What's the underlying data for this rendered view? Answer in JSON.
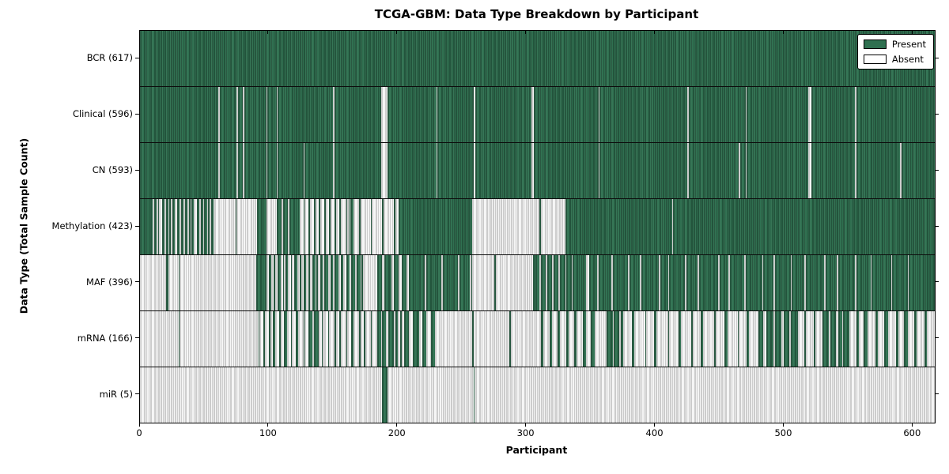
{
  "chart_data": {
    "type": "heatmap",
    "title": "TCGA-GBM: Data Type Breakdown by Participant",
    "xlabel": "Participant",
    "ylabel": "Data Type (Total Sample Count)",
    "x_ticks": [
      0,
      100,
      200,
      300,
      400,
      500,
      600
    ],
    "x_range": [
      0,
      617
    ],
    "n_participants": 617,
    "grid": false,
    "legend_position": "upper right",
    "colors": {
      "present": "#2f7050",
      "absent": "#f3f3f3",
      "edge": "#000000"
    },
    "legend": [
      {
        "label": "Present",
        "color": "#2f7050"
      },
      {
        "label": "Absent",
        "color": "#ffffff"
      }
    ],
    "rows": [
      {
        "label": "BCR (617)",
        "data_type": "BCR",
        "present_count": 617,
        "absent_count": 0,
        "runs": [
          617
        ]
      },
      {
        "label": "Clinical (596)",
        "data_type": "Clinical",
        "present_count": 596,
        "absent_count": 21,
        "runs": [
          61,
          -1,
          13,
          -1,
          4,
          -1,
          17,
          -1,
          7,
          -1,
          43,
          -1,
          36,
          -5,
          38,
          -1,
          28,
          -1,
          44,
          -2,
          50,
          -1,
          68,
          -1,
          44,
          -1,
          48,
          -2,
          34,
          -1,
          61
        ]
      },
      {
        "label": "CN (593)",
        "data_type": "CN",
        "present_count": 593,
        "absent_count": 24,
        "runs": [
          61,
          -1,
          13,
          -1,
          4,
          -1,
          17,
          -1,
          7,
          -1,
          20,
          -1,
          22,
          -1,
          36,
          -5,
          38,
          -1,
          28,
          -1,
          44,
          -2,
          50,
          -1,
          68,
          -1,
          39,
          -1,
          4,
          -1,
          48,
          -2,
          34,
          -1,
          34,
          -1,
          26
        ]
      },
      {
        "label": "Methylation (423)",
        "data_type": "Methylation",
        "present_count": 423,
        "absent_count": 194,
        "runs": [
          10,
          -1,
          2,
          -1,
          1,
          -2,
          2,
          -1,
          2,
          -1,
          1,
          -1,
          2,
          -2,
          2,
          -1,
          2,
          -1,
          2,
          -1,
          1,
          -1,
          2,
          -2,
          2,
          -1,
          2,
          -1,
          2,
          -1,
          1,
          -1,
          2,
          -1,
          -16,
          1,
          -16,
          7,
          -8,
          4,
          -1,
          4,
          -1,
          8,
          -3,
          1,
          -3,
          1,
          -3,
          1,
          -3,
          1,
          -3,
          1,
          -3,
          1,
          -3,
          1,
          -3,
          1,
          -4,
          1,
          -1,
          1,
          3,
          -4,
          1,
          -8,
          1,
          -8,
          1,
          -8,
          1,
          -3,
          57,
          -52,
          1,
          -19,
          83,
          -1,
          203
        ]
      },
      {
        "label": "MAF (396)",
        "data_type": "MAF",
        "present_count": 396,
        "absent_count": 221,
        "runs": [
          -20,
          2,
          -8,
          1,
          -59,
          7,
          1,
          -2,
          2,
          -2,
          1,
          -2,
          2,
          -2,
          1,
          -1,
          2,
          -2,
          1,
          -2,
          2,
          -2,
          1,
          -2,
          2,
          -2,
          1,
          -2,
          2,
          -1,
          1,
          -2,
          2,
          -1,
          3,
          -2,
          2,
          -1,
          3,
          -2,
          2,
          -2,
          3,
          -1,
          3,
          -1,
          3,
          -1,
          1,
          -1,
          -10,
          4,
          -2,
          5,
          -2,
          4,
          -2,
          4,
          -2,
          12,
          -1,
          12,
          -1,
          12,
          -1,
          8,
          -1,
          1,
          -17,
          1,
          -29,
          2,
          3,
          -1,
          4,
          -1,
          4,
          -1,
          4,
          -1,
          4,
          -1,
          4,
          -1,
          10,
          -3,
          6,
          -1,
          10,
          -1,
          12,
          -1,
          8,
          -1,
          14,
          -1,
          6,
          -1,
          12,
          -1,
          9,
          -1,
          15,
          -1,
          7,
          -1,
          11,
          -1,
          13,
          -1,
          8,
          -1,
          12,
          -1,
          10,
          -1,
          14,
          -1,
          9,
          -1,
          13,
          -1,
          11,
          -1,
          15,
          -1,
          12,
          -1,
          20
        ]
      },
      {
        "label": "mRNA (166)",
        "data_type": "mRNA",
        "present_count": 166,
        "absent_count": 451,
        "runs": [
          -30,
          1,
          -59,
          -2,
          1,
          -3,
          1,
          -3,
          1,
          -2,
          2,
          -3,
          1,
          -3,
          2,
          -3,
          1,
          -3,
          2,
          -4,
          1,
          -3,
          3,
          -1,
          4,
          -2,
          1,
          -1,
          -3,
          1,
          -4,
          1,
          -3,
          1,
          -4,
          1,
          -3,
          2,
          -4,
          1,
          -3,
          1,
          -4,
          1,
          -4,
          3,
          -1,
          3,
          -2,
          4,
          -1,
          2,
          -2,
          1,
          -2,
          4,
          -3,
          5,
          -2,
          3,
          -4,
          3,
          -6,
          -23,
          1,
          -1,
          -27,
          1,
          -19,
          -4,
          2,
          -5,
          2,
          -4,
          2,
          -5,
          2,
          -4,
          2,
          -5,
          2,
          -4,
          3,
          -9,
          5,
          -1,
          4,
          -1,
          2,
          -7,
          2,
          -8,
          1,
          -6,
          2,
          -9,
          1,
          -7,
          2,
          -8,
          1,
          -6,
          2,
          -9,
          1,
          -7,
          2,
          -8,
          1,
          -6,
          2,
          -7,
          4,
          -2,
          6,
          -1,
          5,
          -2,
          4,
          -1,
          6,
          -5,
          1,
          -6,
          1,
          -6,
          5,
          -1,
          4,
          -2,
          3,
          -1,
          5,
          -5,
          2,
          -4,
          3,
          -6,
          2,
          -5,
          3,
          -6,
          2,
          -4,
          3,
          -5,
          2,
          -6,
          2,
          -6
        ]
      },
      {
        "label": "miR (5)",
        "data_type": "miR",
        "present_count": 5,
        "absent_count": 612,
        "runs": [
          -188,
          4,
          -67,
          1,
          -357
        ]
      }
    ]
  }
}
